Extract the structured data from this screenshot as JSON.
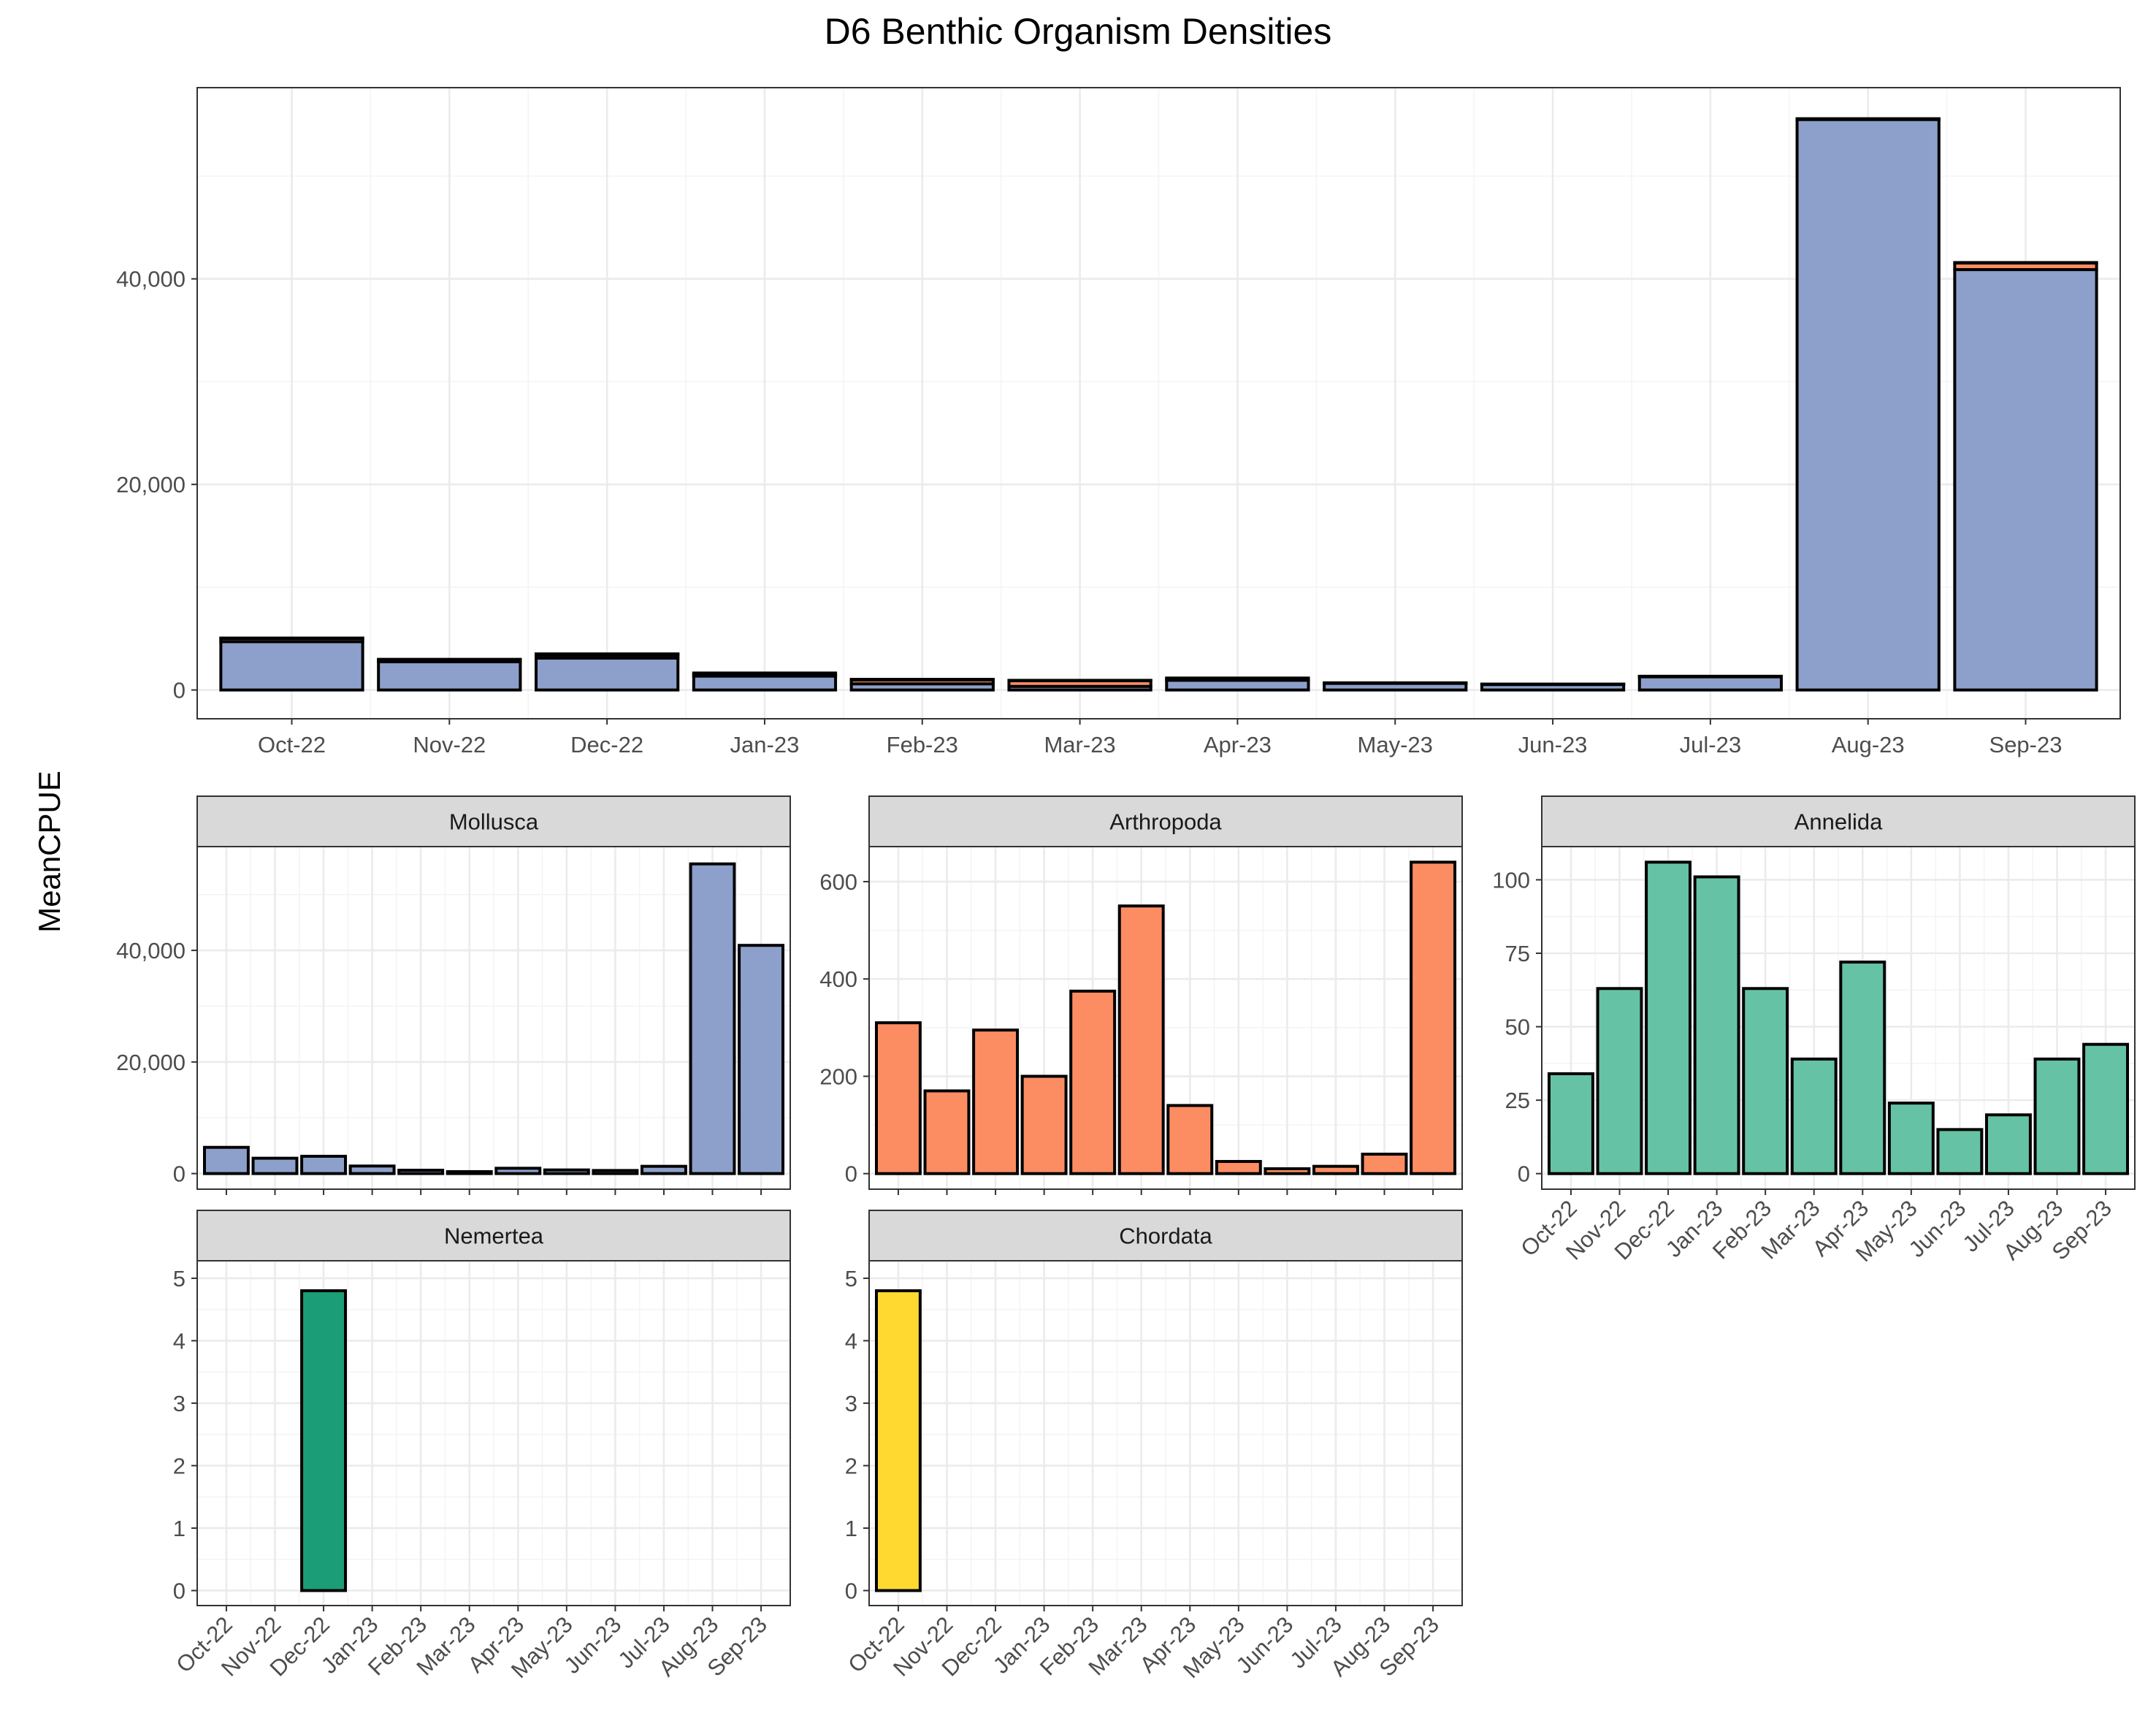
{
  "chart_data": [
    {
      "type": "bar",
      "stacked": true,
      "title": "D6 Benthic Organism Densities",
      "ylabel": "MeanCPUE",
      "categories": [
        "Oct-22",
        "Nov-22",
        "Dec-22",
        "Jan-23",
        "Feb-23",
        "Mar-23",
        "Apr-23",
        "May-23",
        "Jun-23",
        "Jul-23",
        "Aug-23",
        "Sep-23"
      ],
      "yticks": [
        0,
        20000,
        40000
      ],
      "ytick_labels": [
        "0",
        "20,000",
        "40,000"
      ],
      "ylim": [
        -2800,
        58600
      ],
      "grid": true,
      "series": [
        {
          "key": "mollusca",
          "color": "#8DA0CB",
          "values": [
            4700,
            2750,
            3100,
            1350,
            600,
            350,
            950,
            650,
            550,
            1300,
            55500,
            40900
          ]
        },
        {
          "key": "arthropoda",
          "color": "#FC8D62",
          "values": [
            310,
            170,
            295,
            200,
            375,
            550,
            140,
            25,
            10,
            15,
            40,
            640
          ]
        },
        {
          "key": "annelida",
          "color": "#66C2A5",
          "values": [
            34,
            63,
            106,
            101,
            63,
            39,
            72,
            24,
            15,
            20,
            39,
            44
          ]
        },
        {
          "key": "nemertea",
          "color": "#1B9E77",
          "values": [
            0,
            0,
            4.8,
            0,
            0,
            0,
            0,
            0,
            0,
            0,
            0,
            0
          ]
        },
        {
          "key": "chordata",
          "color": "#FFD92F",
          "values": [
            4.8,
            0,
            0,
            0,
            0,
            0,
            0,
            0,
            0,
            0,
            0,
            0
          ]
        }
      ]
    },
    {
      "type": "bar",
      "panel": "Mollusca",
      "color": "#8DA0CB",
      "categories": [
        "Oct-22",
        "Nov-22",
        "Dec-22",
        "Jan-23",
        "Feb-23",
        "Mar-23",
        "Apr-23",
        "May-23",
        "Jun-23",
        "Jul-23",
        "Aug-23",
        "Sep-23"
      ],
      "values": [
        4700,
        2750,
        3100,
        1350,
        600,
        350,
        950,
        650,
        550,
        1300,
        55500,
        40900
      ],
      "yticks": [
        0,
        20000,
        40000
      ],
      "ytick_labels": [
        "0",
        "20,000",
        "40,000"
      ],
      "ylim": [
        -2800,
        58600
      ],
      "show_x_labels": false
    },
    {
      "type": "bar",
      "panel": "Arthropoda",
      "color": "#FC8D62",
      "categories": [
        "Oct-22",
        "Nov-22",
        "Dec-22",
        "Jan-23",
        "Feb-23",
        "Mar-23",
        "Apr-23",
        "May-23",
        "Jun-23",
        "Jul-23",
        "Aug-23",
        "Sep-23"
      ],
      "values": [
        310,
        170,
        295,
        200,
        375,
        550,
        140,
        25,
        10,
        15,
        40,
        640
      ],
      "yticks": [
        0,
        200,
        400,
        600
      ],
      "ytick_labels": [
        "0",
        "200",
        "400",
        "600"
      ],
      "ylim": [
        -32,
        672
      ],
      "show_x_labels": false
    },
    {
      "type": "bar",
      "panel": "Annelida",
      "color": "#66C2A5",
      "categories": [
        "Oct-22",
        "Nov-22",
        "Dec-22",
        "Jan-23",
        "Feb-23",
        "Mar-23",
        "Apr-23",
        "May-23",
        "Jun-23",
        "Jul-23",
        "Aug-23",
        "Sep-23"
      ],
      "values": [
        34,
        63,
        106,
        101,
        63,
        39,
        72,
        24,
        15,
        20,
        39,
        44
      ],
      "yticks": [
        0,
        25,
        50,
        75,
        100
      ],
      "ytick_labels": [
        "0",
        "25",
        "50",
        "75",
        "100"
      ],
      "ylim": [
        -5.3,
        111.3
      ],
      "show_x_labels": true
    },
    {
      "type": "bar",
      "panel": "Nemertea",
      "color": "#1B9E77",
      "categories": [
        "Oct-22",
        "Nov-22",
        "Dec-22",
        "Jan-23",
        "Feb-23",
        "Mar-23",
        "Apr-23",
        "May-23",
        "Jun-23",
        "Jul-23",
        "Aug-23",
        "Sep-23"
      ],
      "values": [
        0,
        0,
        4.8,
        0,
        0,
        0,
        0,
        0,
        0,
        0,
        0,
        0
      ],
      "yticks": [
        0,
        1,
        2,
        3,
        4,
        5
      ],
      "ytick_labels": [
        "0",
        "1",
        "2",
        "3",
        "4",
        "5"
      ],
      "ylim": [
        -0.24,
        5.28
      ],
      "show_x_labels": true
    },
    {
      "type": "bar",
      "panel": "Chordata",
      "color": "#FFD92F",
      "categories": [
        "Oct-22",
        "Nov-22",
        "Dec-22",
        "Jan-23",
        "Feb-23",
        "Mar-23",
        "Apr-23",
        "May-23",
        "Jun-23",
        "Jul-23",
        "Aug-23",
        "Sep-23"
      ],
      "values": [
        4.8,
        0,
        0,
        0,
        0,
        0,
        0,
        0,
        0,
        0,
        0,
        0
      ],
      "yticks": [
        0,
        1,
        2,
        3,
        4,
        5
      ],
      "ytick_labels": [
        "0",
        "1",
        "2",
        "3",
        "4",
        "5"
      ],
      "ylim": [
        -0.24,
        5.28
      ],
      "show_x_labels": true
    }
  ]
}
